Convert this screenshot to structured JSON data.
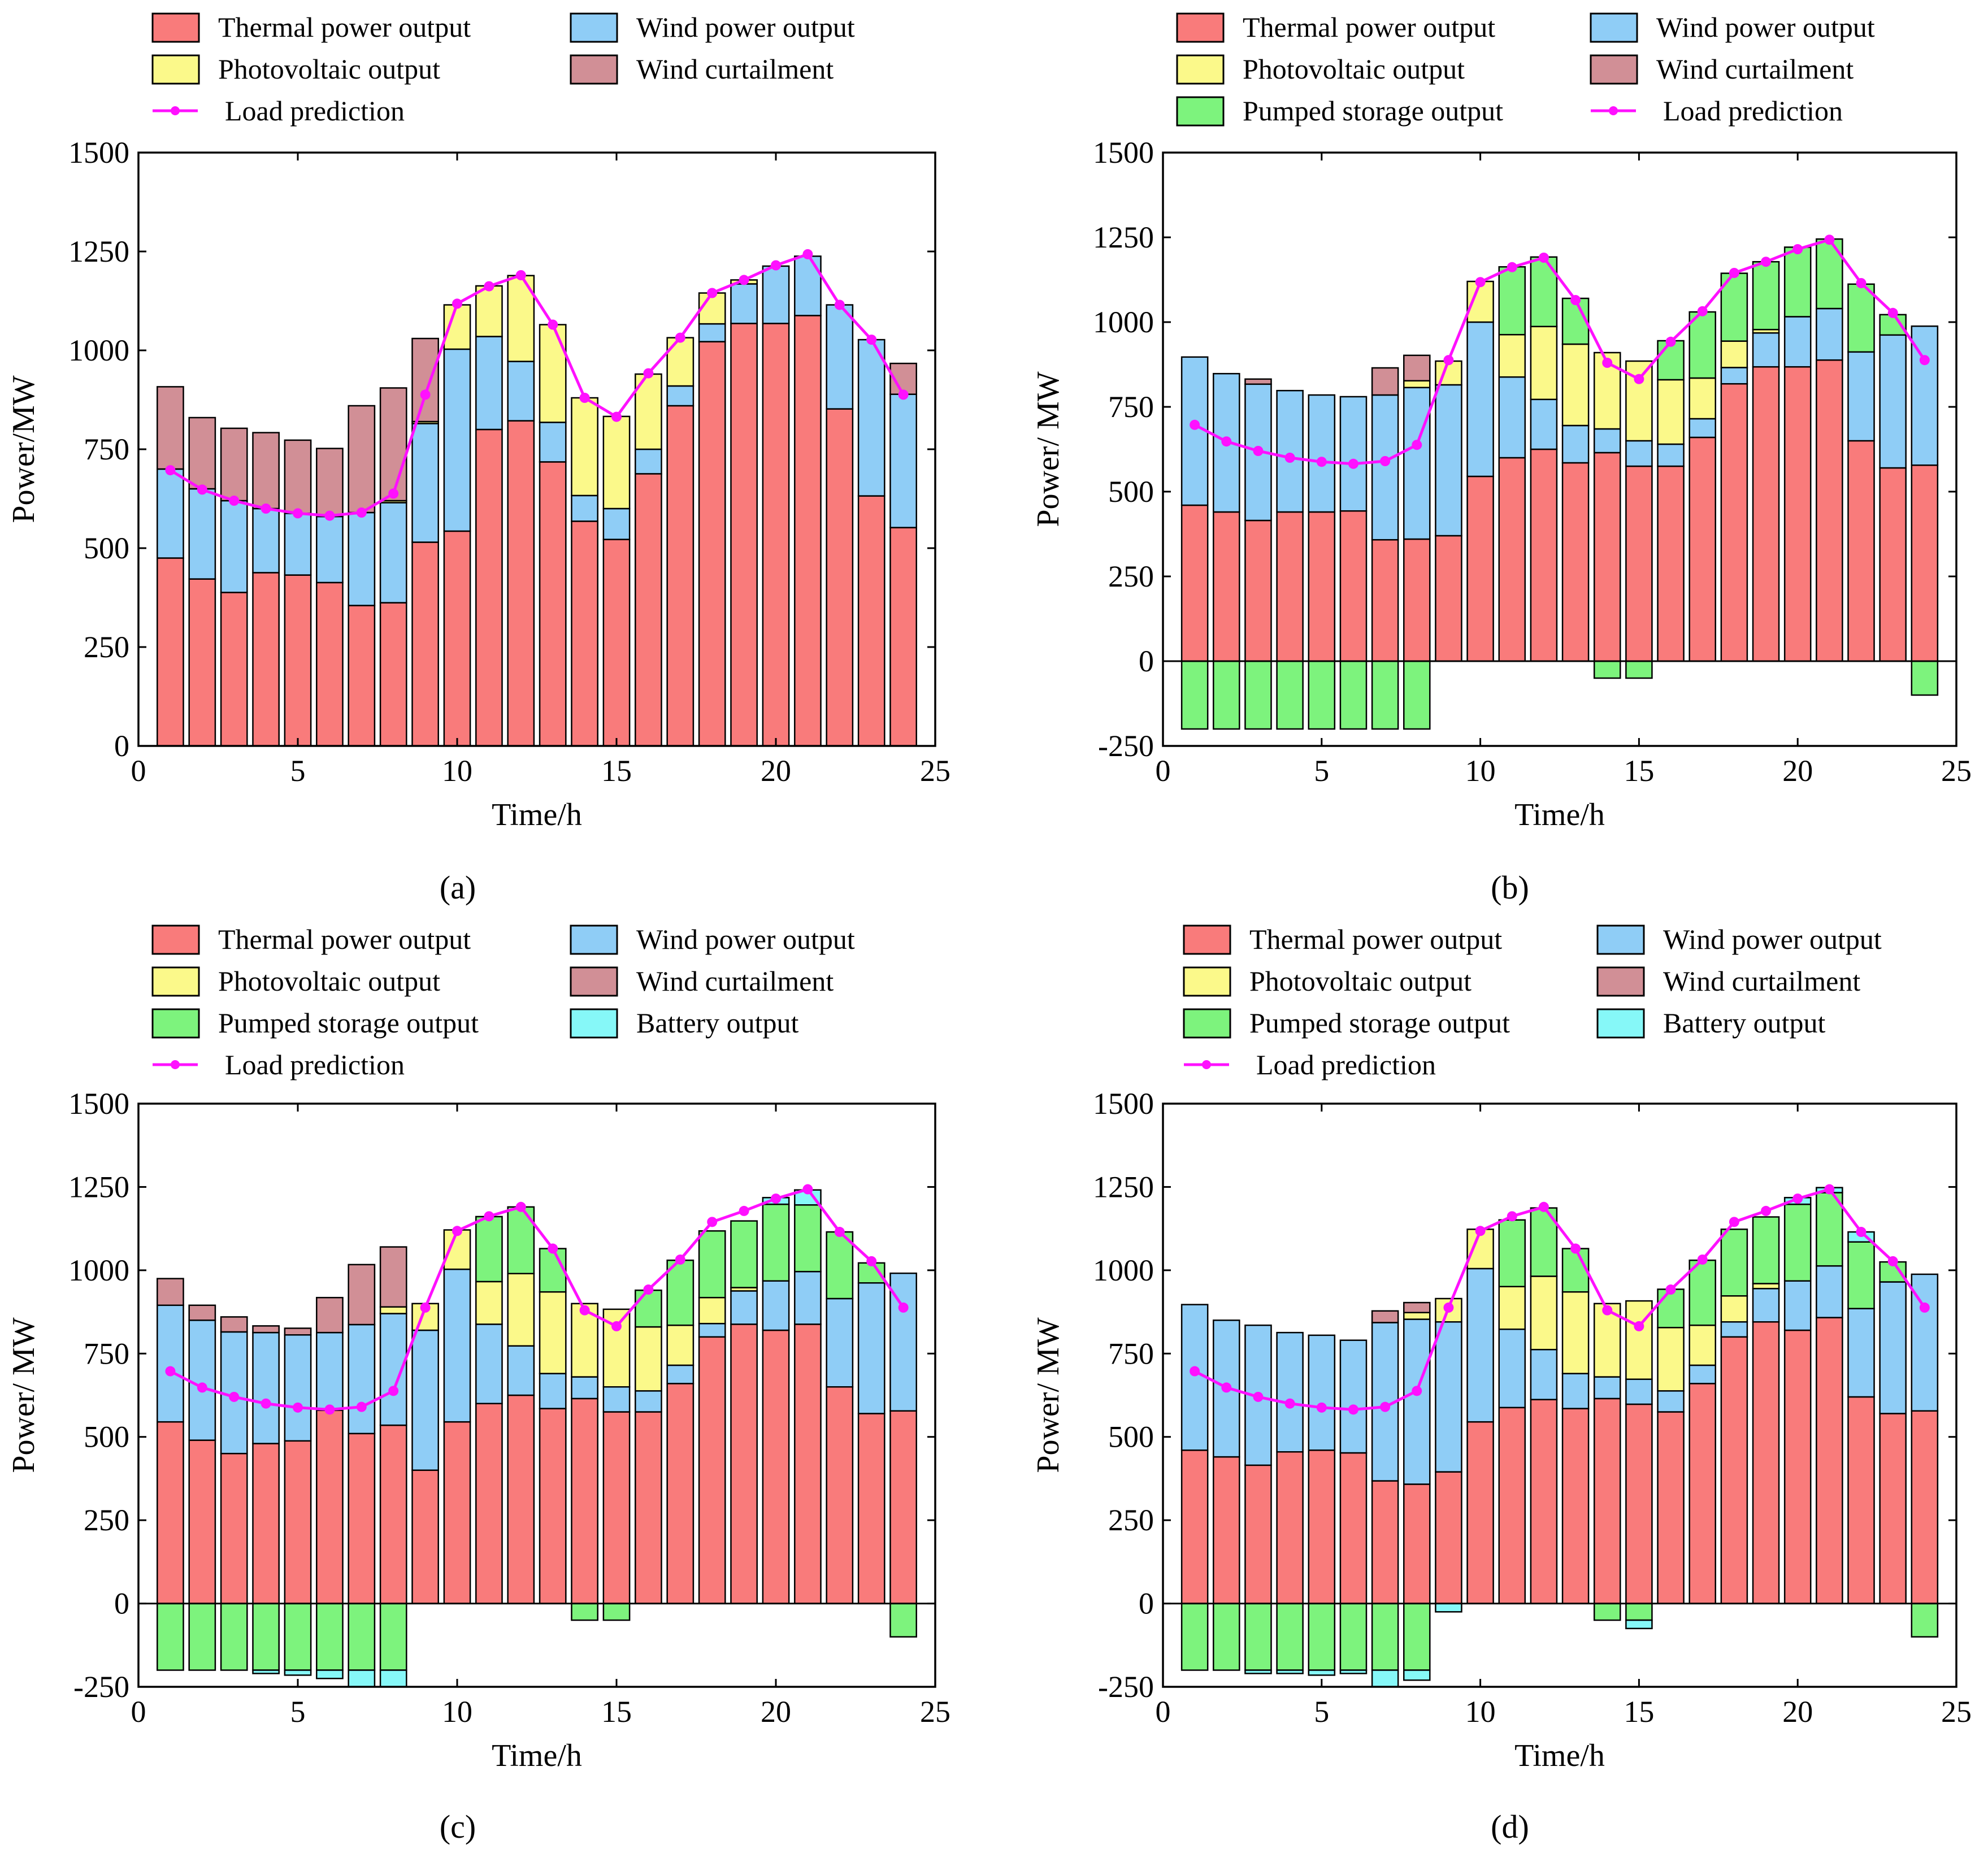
{
  "colors": {
    "thermal": "#f97b7b",
    "wind": "#8fcdf6",
    "pv": "#fbf98a",
    "curtail": "#d18f96",
    "pumped": "#7df37d",
    "battery": "#86f8f8",
    "load": "#ff10ff"
  },
  "legend_labels": {
    "thermal": "Thermal power output",
    "wind": "Wind power output",
    "pv": "Photovoltaic output",
    "curtail": "Wind curtailment",
    "pumped": "Pumped storage output",
    "battery": "Battery output",
    "load": "Load prediction"
  },
  "chart_data": [
    {
      "type": "bar",
      "stacked": true,
      "panel_label": "(a)",
      "xlabel": "Time/h",
      "ylabel": "Power/MW",
      "xlim": [
        0,
        25
      ],
      "ylim": [
        0,
        1500
      ],
      "xticks": [
        0,
        5,
        10,
        15,
        20,
        25
      ],
      "yticks": [
        0,
        250,
        500,
        750,
        1000,
        1250,
        1500
      ],
      "legend": [
        "Thermal power output",
        "Wind power output",
        "Photovoltaic output",
        "Wind curtailment",
        "Load prediction"
      ],
      "x": [
        1,
        2,
        3,
        4,
        5,
        6,
        7,
        8,
        9,
        10,
        11,
        12,
        13,
        14,
        15,
        16,
        17,
        18,
        19,
        20,
        21,
        22,
        23,
        24
      ],
      "series": [
        {
          "name": "Thermal power output",
          "key": "thermal",
          "values": [
            475,
            422,
            388,
            438,
            432,
            413,
            355,
            362,
            515,
            543,
            800,
            822,
            718,
            568,
            522,
            688,
            860,
            1022,
            1068,
            1068,
            1088,
            852,
            632,
            552
          ]
        },
        {
          "name": "Wind power output",
          "key": "wind",
          "values": [
            225,
            228,
            232,
            162,
            156,
            167,
            235,
            253,
            300,
            460,
            235,
            150,
            100,
            65,
            78,
            62,
            50,
            45,
            100,
            145,
            150,
            263,
            395,
            337
          ]
        },
        {
          "name": "Photovoltaic output",
          "key": "pv",
          "values": [
            0,
            0,
            0,
            0,
            0,
            0,
            0,
            5,
            5,
            112,
            128,
            217,
            247,
            247,
            233,
            190,
            122,
            78,
            10,
            0,
            0,
            0,
            0,
            0
          ]
        },
        {
          "name": "Wind curtailment",
          "key": "curtail",
          "values": [
            208,
            180,
            183,
            192,
            185,
            172,
            270,
            285,
            210,
            0,
            0,
            0,
            0,
            0,
            0,
            0,
            0,
            0,
            0,
            0,
            0,
            0,
            0,
            78
          ]
        }
      ],
      "load": [
        697,
        648,
        620,
        600,
        588,
        582,
        590,
        638,
        888,
        1118,
        1162,
        1190,
        1065,
        880,
        832,
        942,
        1032,
        1145,
        1178,
        1215,
        1243,
        1115,
        1027,
        888
      ]
    },
    {
      "type": "bar",
      "stacked": true,
      "panel_label": "(b)",
      "xlabel": "Time/h",
      "ylabel": "Power/ MW",
      "xlim": [
        0,
        25
      ],
      "ylim": [
        -250,
        1500
      ],
      "xticks": [
        0,
        5,
        10,
        15,
        20,
        25
      ],
      "yticks": [
        -250,
        0,
        250,
        500,
        750,
        1000,
        1250,
        1500
      ],
      "legend": [
        "Thermal power output",
        "Wind power output",
        "Photovoltaic output",
        "Wind curtailment",
        "Pumped storage output",
        "Load prediction"
      ],
      "x": [
        1,
        2,
        3,
        4,
        5,
        6,
        7,
        8,
        9,
        10,
        11,
        12,
        13,
        14,
        15,
        16,
        17,
        18,
        19,
        20,
        21,
        22,
        23,
        24
      ],
      "series": [
        {
          "name": "Thermal power output",
          "key": "thermal",
          "values": [
            460,
            440,
            415,
            440,
            440,
            443,
            358,
            360,
            370,
            545,
            600,
            625,
            585,
            615,
            575,
            575,
            660,
            818,
            868,
            868,
            888,
            650,
            570,
            578
          ]
        },
        {
          "name": "Wind power output",
          "key": "wind",
          "values": [
            437,
            408,
            402,
            358,
            345,
            337,
            427,
            447,
            445,
            455,
            238,
            147,
            110,
            70,
            75,
            65,
            55,
            48,
            100,
            148,
            152,
            262,
            392,
            410
          ]
        },
        {
          "name": "Photovoltaic output",
          "key": "pv",
          "values": [
            0,
            0,
            0,
            0,
            0,
            0,
            0,
            20,
            70,
            120,
            125,
            215,
            240,
            225,
            235,
            190,
            120,
            78,
            10,
            0,
            0,
            0,
            0,
            0
          ]
        },
        {
          "name": "Wind curtailment",
          "key": "curtail",
          "values": [
            0,
            0,
            15,
            0,
            0,
            0,
            80,
            75,
            0,
            0,
            0,
            0,
            0,
            0,
            0,
            0,
            0,
            0,
            0,
            0,
            0,
            0,
            0,
            0
          ]
        },
        {
          "name": "Pumped storage output",
          "key": "pumped",
          "values": [
            -200,
            -200,
            -200,
            -200,
            -200,
            -200,
            -200,
            -200,
            0,
            0,
            200,
            205,
            135,
            -50,
            -50,
            115,
            195,
            200,
            200,
            205,
            205,
            200,
            60,
            -100
          ]
        }
      ],
      "load": [
        697,
        648,
        620,
        600,
        588,
        582,
        590,
        638,
        888,
        1118,
        1162,
        1190,
        1065,
        880,
        832,
        942,
        1032,
        1145,
        1178,
        1215,
        1243,
        1115,
        1027,
        888
      ]
    },
    {
      "type": "bar",
      "stacked": true,
      "panel_label": "(c)",
      "xlabel": "Time/h",
      "ylabel": "Power/ MW",
      "xlim": [
        0,
        25
      ],
      "ylim": [
        -250,
        1500
      ],
      "xticks": [
        0,
        5,
        10,
        15,
        20,
        25
      ],
      "yticks": [
        -250,
        0,
        250,
        500,
        750,
        1000,
        1250,
        1500
      ],
      "legend": [
        "Thermal power output",
        "Wind power output",
        "Photovoltaic output",
        "Wind curtailment",
        "Pumped storage output",
        "Battery output",
        "Load prediction"
      ],
      "x": [
        1,
        2,
        3,
        4,
        5,
        6,
        7,
        8,
        9,
        10,
        11,
        12,
        13,
        14,
        15,
        16,
        17,
        18,
        19,
        20,
        21,
        22,
        23,
        24
      ],
      "series": [
        {
          "name": "Thermal power output",
          "key": "thermal",
          "values": [
            545,
            490,
            450,
            480,
            488,
            580,
            510,
            535,
            400,
            545,
            600,
            625,
            585,
            615,
            575,
            575,
            660,
            800,
            838,
            820,
            838,
            650,
            570,
            578
          ]
        },
        {
          "name": "Wind power output",
          "key": "wind",
          "values": [
            350,
            360,
            365,
            333,
            318,
            233,
            327,
            335,
            420,
            458,
            238,
            148,
            105,
            65,
            75,
            63,
            55,
            40,
            100,
            148,
            158,
            265,
            392,
            413
          ]
        },
        {
          "name": "Photovoltaic output",
          "key": "pv",
          "values": [
            0,
            0,
            0,
            0,
            0,
            0,
            0,
            20,
            80,
            118,
            128,
            217,
            245,
            220,
            233,
            192,
            120,
            78,
            10,
            0,
            0,
            0,
            0,
            0
          ]
        },
        {
          "name": "Wind curtailment",
          "key": "curtail",
          "values": [
            80,
            45,
            45,
            20,
            20,
            105,
            180,
            180,
            0,
            0,
            0,
            0,
            0,
            0,
            0,
            0,
            0,
            0,
            0,
            0,
            0,
            0,
            0,
            0
          ]
        },
        {
          "name": "Pumped storage output",
          "key": "pumped",
          "values": [
            -200,
            -200,
            -200,
            -200,
            -200,
            -200,
            -200,
            -200,
            0,
            0,
            195,
            200,
            130,
            -50,
            -50,
            110,
            195,
            200,
            200,
            230,
            200,
            200,
            60,
            -100
          ]
        },
        {
          "name": "Battery output",
          "key": "battery",
          "values": [
            0,
            0,
            0,
            -10,
            -15,
            -25,
            -50,
            -50,
            0,
            0,
            0,
            0,
            0,
            0,
            0,
            0,
            0,
            0,
            0,
            20,
            45,
            0,
            0,
            0
          ]
        }
      ],
      "load": [
        697,
        648,
        620,
        600,
        588,
        582,
        590,
        638,
        888,
        1118,
        1162,
        1190,
        1065,
        880,
        832,
        942,
        1032,
        1145,
        1178,
        1215,
        1243,
        1115,
        1027,
        888
      ]
    },
    {
      "type": "bar",
      "stacked": true,
      "panel_label": "(d)",
      "xlabel": "Time/h",
      "ylabel": "Power/ MW",
      "xlim": [
        0,
        25
      ],
      "ylim": [
        -250,
        1500
      ],
      "xticks": [
        0,
        5,
        10,
        15,
        20,
        25
      ],
      "yticks": [
        -250,
        0,
        250,
        500,
        750,
        1000,
        1250,
        1500
      ],
      "legend": [
        "Thermal power output",
        "Wind power output",
        "Photovoltaic output",
        "Wind curtailment",
        "Pumped storage output",
        "Battery output",
        "Load prediction"
      ],
      "x": [
        1,
        2,
        3,
        4,
        5,
        6,
        7,
        8,
        9,
        10,
        11,
        12,
        13,
        14,
        15,
        16,
        17,
        18,
        19,
        20,
        21,
        22,
        23,
        24
      ],
      "series": [
        {
          "name": "Thermal power output",
          "key": "thermal",
          "values": [
            460,
            440,
            415,
            455,
            460,
            452,
            368,
            358,
            395,
            545,
            588,
            612,
            585,
            615,
            598,
            575,
            660,
            800,
            845,
            820,
            858,
            620,
            570,
            578
          ]
        },
        {
          "name": "Wind power output",
          "key": "wind",
          "values": [
            437,
            410,
            420,
            358,
            345,
            338,
            475,
            495,
            450,
            460,
            235,
            150,
            105,
            65,
            75,
            63,
            55,
            45,
            100,
            148,
            155,
            265,
            395,
            410
          ]
        },
        {
          "name": "Photovoltaic output",
          "key": "pv",
          "values": [
            0,
            0,
            0,
            0,
            0,
            0,
            0,
            20,
            70,
            118,
            128,
            220,
            245,
            220,
            235,
            190,
            120,
            78,
            15,
            0,
            0,
            0,
            0,
            0
          ]
        },
        {
          "name": "Wind curtailment",
          "key": "curtail",
          "values": [
            0,
            0,
            0,
            0,
            0,
            0,
            35,
            30,
            0,
            0,
            0,
            0,
            0,
            0,
            0,
            0,
            0,
            0,
            0,
            0,
            0,
            0,
            0,
            0
          ]
        },
        {
          "name": "Pumped storage output",
          "key": "pumped",
          "values": [
            -200,
            -200,
            -200,
            -200,
            -200,
            -200,
            -200,
            -200,
            0,
            0,
            200,
            205,
            130,
            -50,
            -50,
            115,
            195,
            200,
            200,
            230,
            220,
            200,
            60,
            -100
          ]
        },
        {
          "name": "Battery output",
          "key": "battery",
          "values": [
            0,
            0,
            -10,
            -10,
            -15,
            -10,
            -50,
            -30,
            -25,
            0,
            0,
            0,
            0,
            0,
            -25,
            0,
            0,
            0,
            0,
            20,
            15,
            30,
            0,
            0
          ]
        }
      ],
      "load": [
        697,
        648,
        620,
        600,
        588,
        582,
        590,
        638,
        888,
        1118,
        1162,
        1190,
        1065,
        880,
        832,
        942,
        1032,
        1145,
        1178,
        1215,
        1243,
        1115,
        1027,
        888
      ]
    }
  ]
}
